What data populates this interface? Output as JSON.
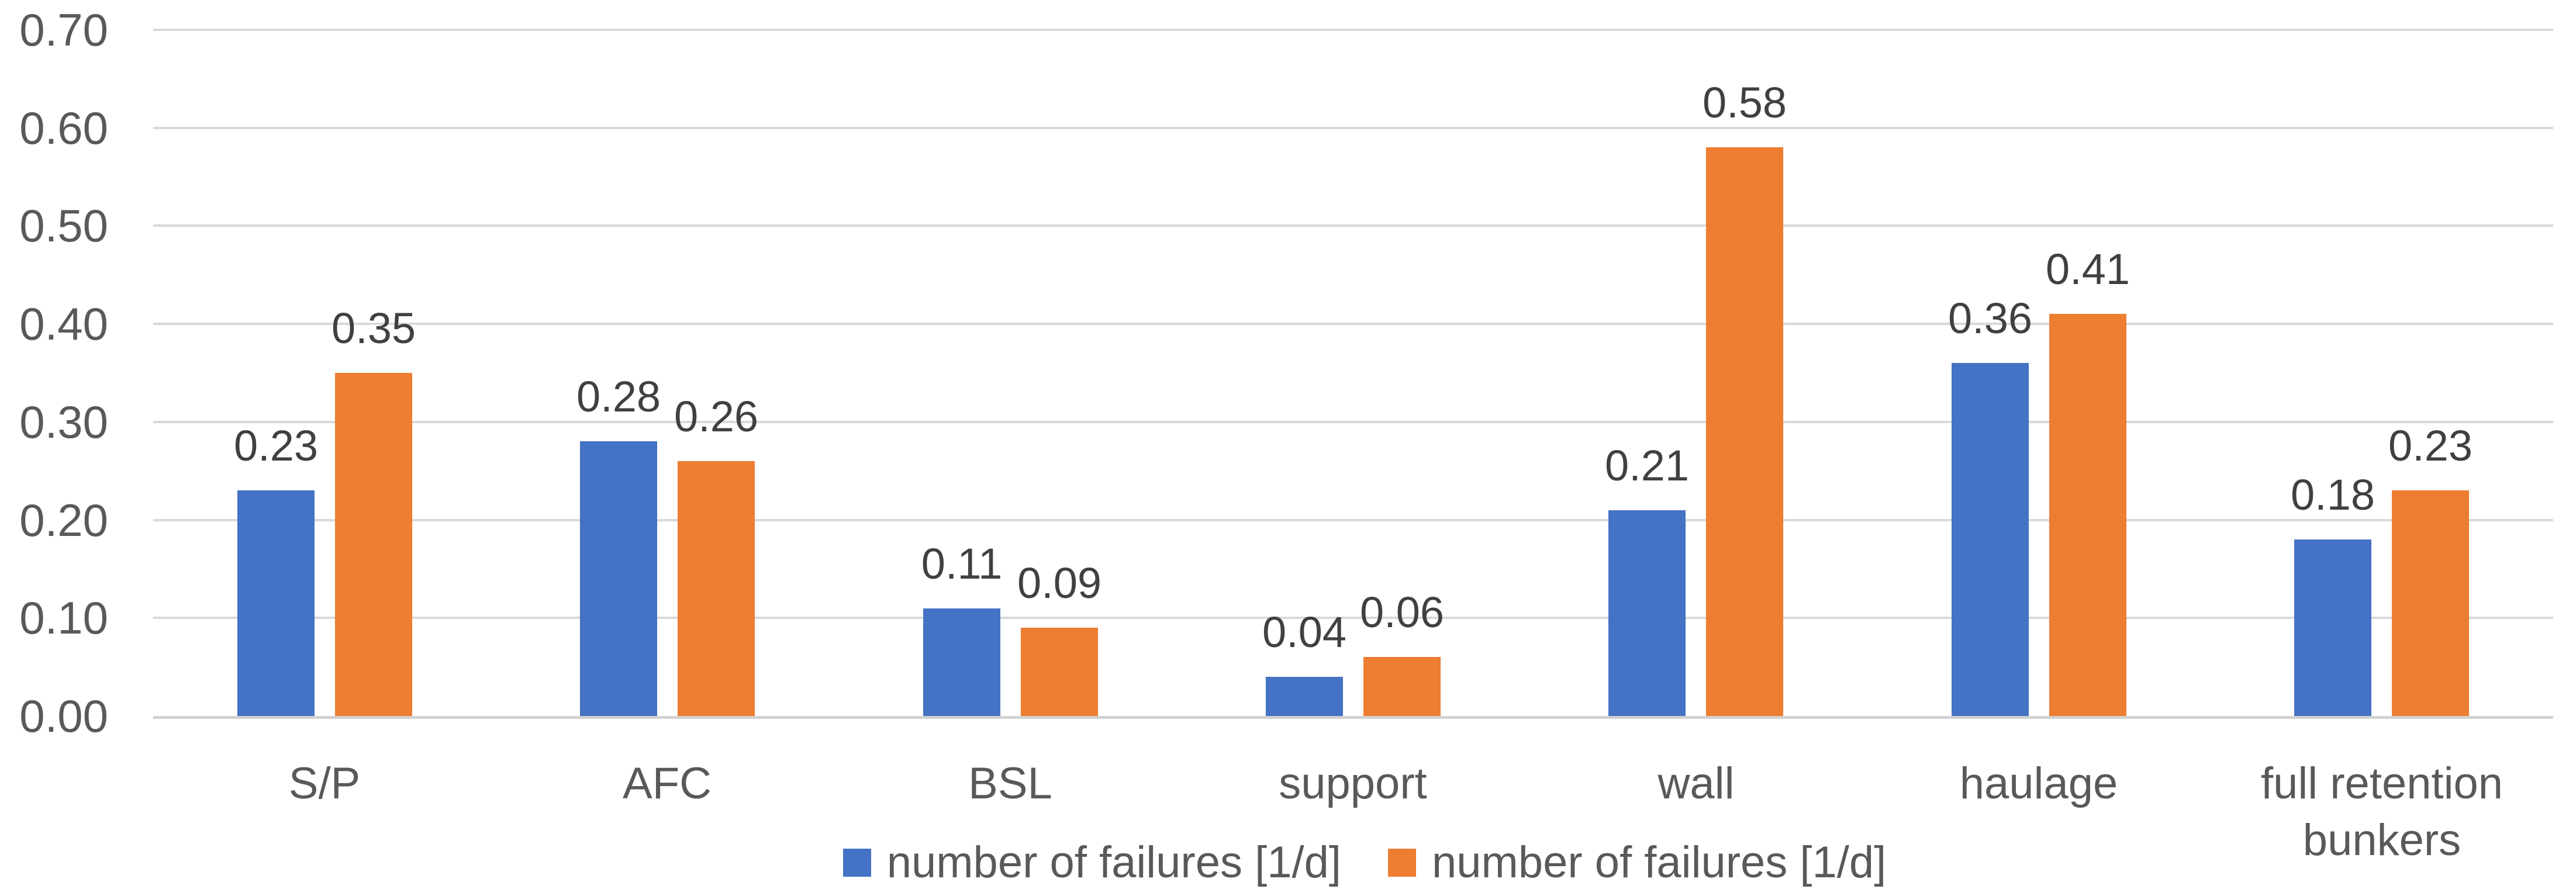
{
  "chart_data": {
    "type": "bar",
    "categories": [
      "S/P",
      "AFC",
      "BSL",
      "support",
      "wall",
      "haulage",
      "full retention bunkers"
    ],
    "series": [
      {
        "name": "number of failures [1/d]",
        "color": "#4472C4",
        "values": [
          0.23,
          0.28,
          0.11,
          0.04,
          0.21,
          0.36,
          0.18
        ],
        "labels": [
          "0.23",
          "0.28",
          "0.11",
          "0.04",
          "0.21",
          "0.36",
          "0.18"
        ]
      },
      {
        "name": "number of failures [1/d]",
        "color": "#ED7D31",
        "values": [
          0.35,
          0.26,
          0.09,
          0.06,
          0.58,
          0.41,
          0.23
        ],
        "labels": [
          "0.35",
          "0.26",
          "0.09",
          "0.06",
          "0.58",
          "0.41",
          "0.23"
        ]
      }
    ],
    "title": "",
    "xlabel": "",
    "ylabel": "",
    "ylim": [
      0,
      0.7
    ],
    "yticks": [
      0.0,
      0.1,
      0.2,
      0.3,
      0.4,
      0.5,
      0.6,
      0.7
    ],
    "ytick_labels": [
      "0.00",
      "0.10",
      "0.20",
      "0.30",
      "0.40",
      "0.50",
      "0.60",
      "0.70"
    ],
    "grid": true,
    "gridline_color": "#D9D9D9",
    "axis_text_color": "#595959",
    "data_label_color": "#404040",
    "background_color": "#FFFFFF",
    "legend_position": "bottom"
  }
}
